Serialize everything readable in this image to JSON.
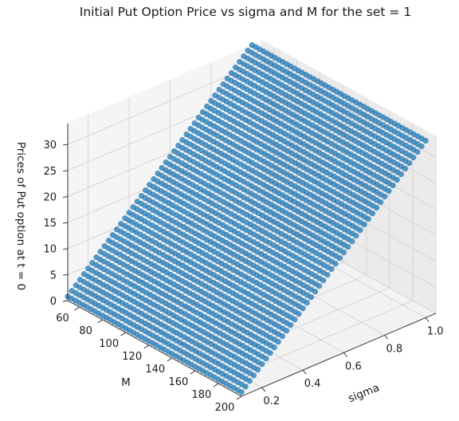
{
  "chart_data": {
    "type": "scatter",
    "projection": "3d",
    "title": "Initial Put Option Price vs sigma and M for the set = 1",
    "xlabel": "sigma",
    "ylabel": "M",
    "zlabel": "Prices of Put option at t = 0",
    "xlim": [
      0.1,
      1.05
    ],
    "ylim": [
      50,
      200
    ],
    "zlim": [
      0,
      34
    ],
    "x_ticks": [
      "0.2",
      "0.4",
      "0.6",
      "0.8",
      "1.0"
    ],
    "x_tick_values": [
      0.2,
      0.4,
      0.6,
      0.8,
      1.0
    ],
    "y_ticks": [
      "60",
      "80",
      "100",
      "120",
      "140",
      "160",
      "180",
      "200"
    ],
    "y_tick_values": [
      60,
      80,
      100,
      120,
      140,
      160,
      180,
      200
    ],
    "z_ticks": [
      "0",
      "5",
      "10",
      "15",
      "20",
      "25",
      "30"
    ],
    "z_tick_values": [
      0,
      5,
      10,
      15,
      20,
      25,
      30
    ],
    "series": [
      {
        "name": "put price",
        "color": "#1f77b4",
        "description": "grid of points over sigma and M; price rises linearly with sigma and is nearly constant in M",
        "sigma_values": [
          0.1,
          1.0
        ],
        "M_values": [
          50,
          200
        ],
        "price_at_sigma_min": 0.8,
        "price_at_sigma_max": 34.0
      }
    ]
  }
}
